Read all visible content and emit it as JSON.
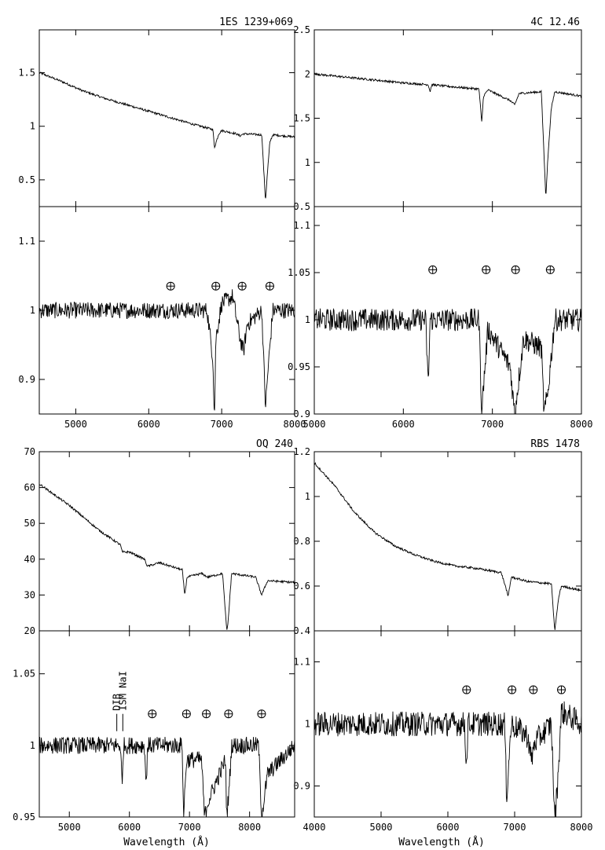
{
  "figure": {
    "xlabel_left": "Wavelength (Å)",
    "xlabel_right": "Wavelength (Å)"
  },
  "chart_data": [
    {
      "type": "line",
      "title": "1ES 1239+069",
      "xlim": [
        4500,
        8000
      ],
      "top": {
        "ylim": [
          0.25,
          1.9
        ],
        "yticks": [
          0.5,
          1,
          1.5
        ],
        "ytick_labels": [
          "0.5",
          "1",
          "1.5"
        ],
        "x": [
          4500,
          4800,
          5100,
          5400,
          5700,
          6000,
          6300,
          6600,
          6880,
          6900,
          6960,
          7000,
          7200,
          7250,
          7300,
          7550,
          7600,
          7620,
          7660,
          7700,
          8000
        ],
        "y": [
          1.5,
          1.42,
          1.33,
          1.26,
          1.2,
          1.14,
          1.08,
          1.02,
          0.97,
          0.8,
          0.93,
          0.96,
          0.93,
          0.91,
          0.93,
          0.92,
          0.3,
          0.5,
          0.85,
          0.92,
          0.9
        ]
      },
      "bottom": {
        "ylim": [
          0.85,
          1.15
        ],
        "yticks": [
          0.9,
          1,
          1.1
        ],
        "ytick_labels": [
          "0.9",
          "1",
          "1.1"
        ],
        "x": [
          4500,
          6800,
          6880,
          6900,
          6920,
          7000,
          7150,
          7250,
          7300,
          7350,
          7550,
          7600,
          7640,
          7700,
          8000
        ],
        "y": [
          1.0,
          1.0,
          0.93,
          0.84,
          0.96,
          1.01,
          1.02,
          0.96,
          0.94,
          0.98,
          1.0,
          0.86,
          0.92,
          1.0,
          1.0
        ],
        "noise": 0.012,
        "earth_markers": {
          "x": [
            6300,
            6920,
            7280,
            7660
          ],
          "y": 1.035
        }
      },
      "xticks": [
        5000,
        6000,
        7000,
        8000
      ],
      "xtick_labels": [
        "5000",
        "6000",
        "7000",
        "8000"
      ]
    },
    {
      "type": "line",
      "title": "4C 12.46",
      "xlim": [
        5000,
        8000
      ],
      "top": {
        "ylim": [
          0.5,
          2.5
        ],
        "yticks": [
          0.5,
          1,
          1.5,
          2,
          2.5
        ],
        "ytick_labels": [
          "0.5",
          "1",
          "1.5",
          "2",
          "2.5"
        ],
        "x": [
          5000,
          5500,
          6000,
          6280,
          6300,
          6320,
          6500,
          6850,
          6880,
          6900,
          6950,
          7200,
          7250,
          7300,
          7550,
          7600,
          7620,
          7660,
          7700,
          8000
        ],
        "y": [
          2.0,
          1.95,
          1.9,
          1.88,
          1.8,
          1.88,
          1.86,
          1.83,
          1.45,
          1.75,
          1.82,
          1.7,
          1.65,
          1.78,
          1.8,
          0.6,
          1.0,
          1.6,
          1.8,
          1.75
        ]
      },
      "bottom": {
        "ylim": [
          0.9,
          1.12
        ],
        "yticks": [
          0.9,
          0.95,
          1,
          1.05,
          1.1
        ],
        "ytick_labels": [
          "0.9",
          "0.95",
          "1",
          "1.05",
          "1.1"
        ],
        "x": [
          5000,
          6250,
          6280,
          6300,
          6850,
          6880,
          6900,
          6950,
          7200,
          7250,
          7300,
          7350,
          7550,
          7580,
          7620,
          7700,
          8000
        ],
        "y": [
          1.0,
          1.0,
          0.93,
          1.0,
          1.0,
          0.9,
          0.93,
          0.99,
          0.95,
          0.9,
          0.94,
          0.98,
          0.97,
          0.9,
          0.92,
          1.0,
          1.0
        ],
        "noise": 0.012,
        "earth_markers": {
          "x": [
            6330,
            6930,
            7260,
            7650
          ],
          "y": 1.053
        }
      },
      "xticks": [
        5000,
        6000,
        7000,
        8000
      ],
      "xtick_labels": [
        "5000",
        "6000",
        "7000",
        "8000"
      ]
    },
    {
      "type": "line",
      "title": "OQ 240",
      "xlim": [
        4500,
        8750
      ],
      "top": {
        "ylim": [
          20,
          70
        ],
        "yticks": [
          20,
          30,
          40,
          50,
          60,
          70
        ],
        "ytick_labels": [
          "20",
          "30",
          "40",
          "50",
          "60",
          "70"
        ],
        "x": [
          4500,
          5000,
          5500,
          5850,
          5880,
          6000,
          6250,
          6300,
          6500,
          6880,
          6920,
          6960,
          7200,
          7300,
          7550,
          7620,
          7640,
          7700,
          8100,
          8200,
          8300,
          8750
        ],
        "y": [
          61,
          55,
          48,
          44,
          42,
          42,
          40,
          38,
          39,
          37,
          30,
          35,
          36,
          35,
          36,
          20,
          22,
          36,
          35,
          30,
          34,
          33.5
        ]
      },
      "bottom": {
        "ylim": [
          0.95,
          1.08
        ],
        "yticks": [
          0.95,
          1,
          1.05
        ],
        "ytick_labels": [
          "0.95",
          "1",
          "1.05"
        ],
        "x": [
          4500,
          5850,
          5880,
          5900,
          6250,
          6280,
          6300,
          6880,
          6900,
          6950,
          7200,
          7250,
          7300,
          7600,
          7620,
          7660,
          7700,
          8150,
          8200,
          8300,
          8750
        ],
        "y": [
          1.0,
          1.0,
          0.97,
          1.0,
          1.0,
          0.97,
          1.0,
          1.0,
          0.95,
          0.99,
          0.99,
          0.95,
          0.96,
          0.99,
          0.95,
          0.97,
          1.0,
          1.0,
          0.95,
          0.98,
          1.0
        ],
        "noise": 0.006,
        "earth_markers": {
          "x": [
            6380,
            6950,
            7280,
            7650,
            8200
          ],
          "y": 1.022
        },
        "annotations": [
          {
            "text": "DIB",
            "x": 5790,
            "tick_y": 1.022
          },
          {
            "text": "ISM NaI",
            "x": 5890,
            "tick_y": 1.022
          }
        ]
      },
      "xticks": [
        5000,
        6000,
        7000,
        8000
      ],
      "xtick_labels": [
        "5000",
        "6000",
        "7000",
        "8000"
      ]
    },
    {
      "type": "line",
      "title": "RBS 1478",
      "xlim": [
        4000,
        8000
      ],
      "top": {
        "ylim": [
          0.4,
          1.2
        ],
        "yticks": [
          0.4,
          0.6,
          0.8,
          1,
          1.2
        ],
        "ytick_labels": [
          "0.4",
          "0.6",
          "0.8",
          "1",
          "1.2"
        ],
        "x": [
          4000,
          4300,
          4600,
          4900,
          5200,
          5500,
          5800,
          6100,
          6400,
          6800,
          6880,
          6900,
          6950,
          7200,
          7550,
          7600,
          7620,
          7660,
          7700,
          8000
        ],
        "y": [
          1.15,
          1.05,
          0.93,
          0.84,
          0.78,
          0.74,
          0.71,
          0.69,
          0.68,
          0.66,
          0.58,
          0.55,
          0.64,
          0.62,
          0.61,
          0.4,
          0.45,
          0.55,
          0.6,
          0.58
        ]
      },
      "bottom": {
        "ylim": [
          0.85,
          1.15
        ],
        "yticks": [
          0.9,
          1,
          1.1
        ],
        "ytick_labels": [
          "0.9",
          "1",
          "1.1"
        ],
        "x": [
          4000,
          6250,
          6280,
          6300,
          6850,
          6880,
          6900,
          6950,
          7200,
          7250,
          7300,
          7550,
          7600,
          7640,
          7700,
          8000
        ],
        "y": [
          1.0,
          1.0,
          0.93,
          1.0,
          1.0,
          0.88,
          0.92,
          1.0,
          0.98,
          0.94,
          0.97,
          1.0,
          0.84,
          0.9,
          1.02,
          1.0
        ],
        "noise": 0.02,
        "earth_markers": {
          "x": [
            6280,
            6960,
            7280,
            7700
          ],
          "y": 1.055
        }
      },
      "xticks": [
        4000,
        5000,
        6000,
        7000,
        8000
      ],
      "xtick_labels": [
        "4000",
        "5000",
        "6000",
        "7000",
        "8000"
      ]
    }
  ]
}
